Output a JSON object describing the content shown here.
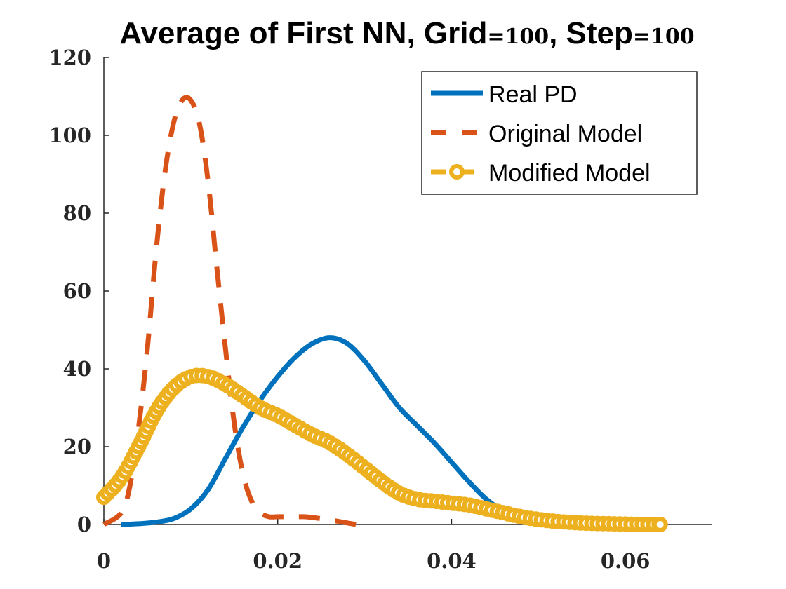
{
  "chart_data": {
    "type": "line",
    "title_main": "Average of First NN, Grid",
    "title_grid_op": "=",
    "title_grid_value": "100",
    "title_sep": ", Step",
    "title_step_op": "=",
    "title_step_value": "100",
    "xlabel": "",
    "ylabel": "",
    "xlim": [
      0,
      0.07
    ],
    "ylim": [
      0,
      120
    ],
    "x_ticks": [
      0,
      0.02,
      0.04,
      0.06
    ],
    "x_tick_labels": [
      "0",
      "0.02",
      "0.04",
      "0.06"
    ],
    "y_ticks": [
      0,
      20,
      40,
      60,
      80,
      100,
      120
    ],
    "y_tick_labels": [
      "0",
      "20",
      "40",
      "60",
      "80",
      "100",
      "120"
    ],
    "grid": false,
    "legend_position": "top-right",
    "series": [
      {
        "name": "Real PD",
        "color": "#0072BD",
        "style": "solid",
        "x": [
          0.002,
          0.004,
          0.006,
          0.008,
          0.01,
          0.012,
          0.014,
          0.016,
          0.018,
          0.02,
          0.022,
          0.024,
          0.026,
          0.028,
          0.03,
          0.032,
          0.034,
          0.036,
          0.038,
          0.04,
          0.042,
          0.044,
          0.046,
          0.048,
          0.05,
          0.052,
          0.054,
          0.056,
          0.058,
          0.06,
          0.062,
          0.064
        ],
        "y": [
          0,
          0.2,
          0.6,
          1.5,
          4,
          9,
          17,
          25,
          32,
          38,
          43,
          46.5,
          48,
          46.5,
          42,
          36,
          30,
          25.5,
          21,
          16,
          11,
          6.5,
          3.5,
          1.8,
          0.8,
          0.4,
          0.2,
          0.1,
          0.05,
          0,
          0,
          0
        ]
      },
      {
        "name": "Original Model",
        "color": "#D95319",
        "style": "dashed",
        "x": [
          0,
          0.002,
          0.003,
          0.004,
          0.005,
          0.006,
          0.007,
          0.008,
          0.009,
          0.01,
          0.011,
          0.012,
          0.013,
          0.014,
          0.015,
          0.016,
          0.017,
          0.018,
          0.019,
          0.02,
          0.021,
          0.022,
          0.023,
          0.024,
          0.025,
          0.026,
          0.027,
          0.028,
          0.029
        ],
        "y": [
          0,
          3,
          10,
          25,
          45,
          70,
          90,
          103,
          109,
          109,
          103,
          88,
          66,
          45,
          26,
          13,
          6,
          3,
          2,
          2,
          2,
          2,
          2,
          1.8,
          1.5,
          1.2,
          0.8,
          0.4,
          0
        ]
      },
      {
        "name": "Modified Model",
        "color": "#EDB120",
        "style": "dashed-circles",
        "x": [
          0,
          0.002,
          0.004,
          0.006,
          0.008,
          0.01,
          0.012,
          0.014,
          0.016,
          0.018,
          0.02,
          0.022,
          0.024,
          0.026,
          0.028,
          0.03,
          0.032,
          0.034,
          0.036,
          0.038,
          0.04,
          0.042,
          0.044,
          0.046,
          0.048,
          0.05,
          0.052,
          0.054,
          0.056,
          0.058,
          0.06,
          0.062,
          0.064
        ],
        "y": [
          7,
          12,
          20,
          29,
          35,
          38,
          38,
          36,
          33,
          30,
          28,
          25.5,
          23,
          21,
          18,
          14.5,
          11,
          8,
          6.5,
          6,
          5.5,
          5,
          4,
          3,
          2,
          1.3,
          0.8,
          0.5,
          0.3,
          0.2,
          0.1,
          0,
          0
        ]
      }
    ]
  }
}
